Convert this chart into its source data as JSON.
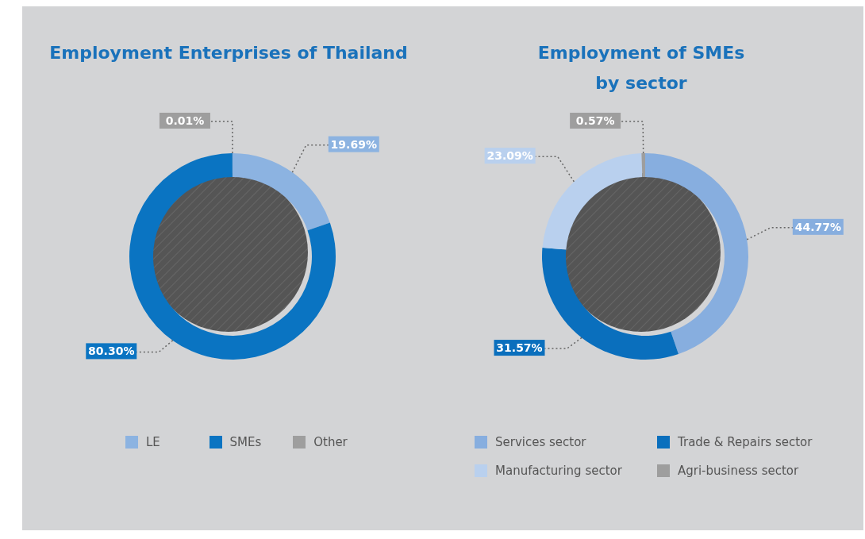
{
  "chart_data": [
    {
      "type": "donut",
      "title": "Employment Enterprises of Thailand",
      "categories": [
        "LE",
        "SMEs",
        "Other"
      ],
      "values": [
        19.69,
        80.3,
        0.01
      ],
      "colors": [
        "#8cb3e1",
        "#0a74c2",
        "#9e9e9e"
      ],
      "value_labels": [
        "19.69%",
        "80.30%",
        "0.01%"
      ],
      "legend": "bottom"
    },
    {
      "type": "donut",
      "title": "Employment of SMEs by sector",
      "categories": [
        "Services sector",
        "Trade & Repairs sector",
        "Manufacturing sector",
        "Agri-business sector"
      ],
      "values": [
        44.77,
        31.57,
        23.09,
        0.57
      ],
      "colors": [
        "#87aedf",
        "#0a6fbd",
        "#b9d0ee",
        "#9e9e9e"
      ],
      "value_labels": [
        "44.77%",
        "31.57%",
        "23.09%",
        "0.57%"
      ],
      "legend": "bottom"
    }
  ]
}
